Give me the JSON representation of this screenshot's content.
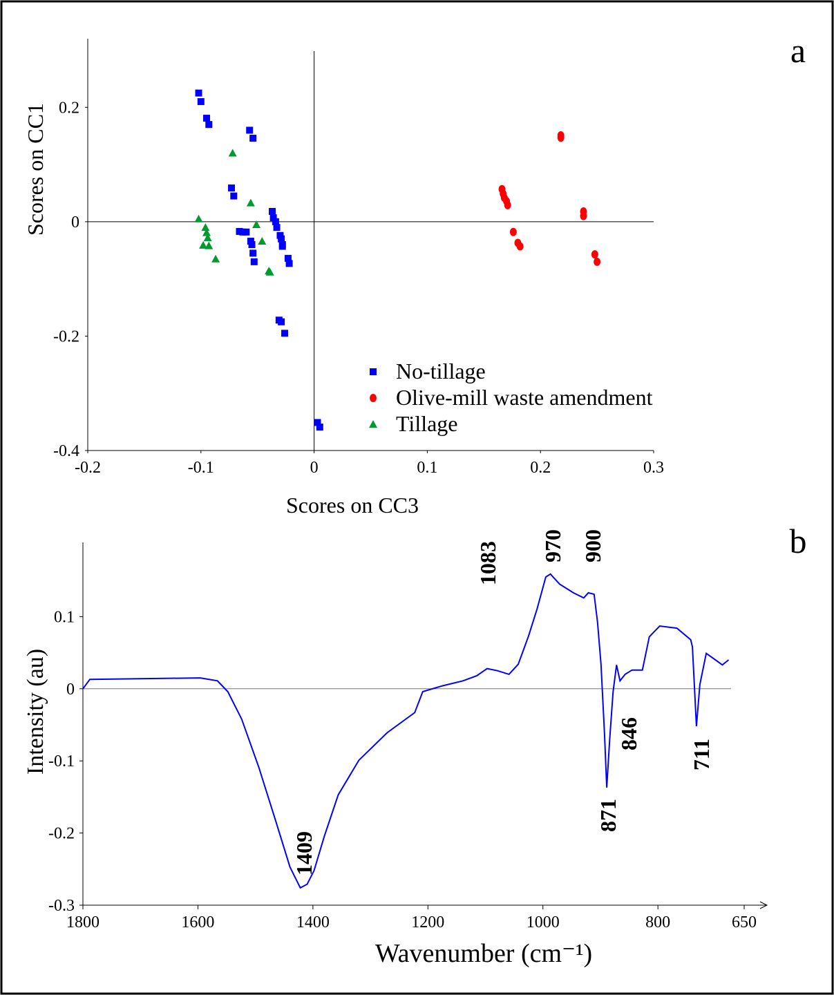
{
  "chart_data": [
    {
      "type": "scatter",
      "panel_label": "a",
      "x_label": "Scores on CC3",
      "y_label": "Scores on CC1",
      "xlim": [
        -0.2,
        0.3
      ],
      "ylim": [
        -0.4,
        0.32
      ],
      "xticks": [
        -0.2,
        -0.1,
        0,
        0.1,
        0.2,
        0.3
      ],
      "yticks": [
        -0.4,
        -0.2,
        0,
        0.2
      ],
      "series": [
        {
          "name": "No-tillage",
          "color": "#0000ff",
          "marker": "square",
          "x": [
            -0.102,
            -0.1,
            -0.095,
            -0.093,
            -0.057,
            -0.054,
            -0.073,
            -0.071,
            -0.037,
            -0.036,
            -0.034,
            -0.033,
            -0.066,
            -0.063,
            -0.06,
            -0.056,
            -0.055,
            -0.054,
            -0.053,
            -0.03,
            -0.029,
            -0.028,
            -0.028,
            -0.023,
            -0.022,
            -0.031,
            -0.029,
            -0.026,
            0.003,
            0.005
          ],
          "values": [
            0.225,
            0.21,
            0.181,
            0.17,
            0.16,
            0.146,
            0.059,
            0.045,
            0.018,
            0.007,
            0,
            -0.01,
            -0.017,
            -0.018,
            -0.018,
            -0.034,
            -0.04,
            -0.055,
            -0.07,
            -0.024,
            -0.03,
            -0.04,
            -0.043,
            -0.064,
            -0.073,
            -0.172,
            -0.175,
            -0.195,
            -0.351,
            -0.359
          ]
        },
        {
          "name": "Olive-mill waste amendment",
          "color": "#ff0000",
          "marker": "circle",
          "x": [
            0.166,
            0.167,
            0.168,
            0.17,
            0.171,
            0.176,
            0.18,
            0.182,
            0.218,
            0.218,
            0.238,
            0.238,
            0.248,
            0.25
          ],
          "values": [
            0.057,
            0.049,
            0.042,
            0.036,
            0.029,
            -0.018,
            -0.037,
            -0.043,
            0.151,
            0.147,
            0.018,
            0.01,
            -0.057,
            -0.07
          ]
        },
        {
          "name": "Tillage",
          "color": "#009a2e",
          "marker": "triangle",
          "x": [
            -0.072,
            -0.056,
            -0.051,
            -0.102,
            -0.096,
            -0.095,
            -0.098,
            -0.094,
            -0.093,
            -0.087,
            -0.046,
            -0.04,
            -0.039
          ],
          "values": [
            0.12,
            0.033,
            -0.005,
            0.005,
            -0.01,
            -0.019,
            -0.041,
            -0.028,
            -0.042,
            -0.065,
            -0.034,
            -0.086,
            -0.088
          ]
        }
      ]
    },
    {
      "type": "line",
      "panel_label": "b",
      "x_label": "Wavenumber (cm⁻¹)",
      "y_label": "Intensity (au)",
      "xlim": [
        1800,
        650
      ],
      "ylim": [
        -0.3,
        0.2
      ],
      "xticks": [
        1800,
        1600,
        1400,
        1200,
        1000,
        800,
        650
      ],
      "yticks": [
        -0.3,
        -0.2,
        -0.1,
        0,
        0.1
      ],
      "series": [
        {
          "color": "#0000ff",
          "x": [
            1800,
            1788,
            1596,
            1566,
            1548,
            1524,
            1494,
            1464,
            1440,
            1422,
            1410,
            1398,
            1380,
            1356,
            1320,
            1271,
            1223,
            1209,
            1175,
            1139,
            1115,
            1097,
            1079,
            1059,
            1043,
            1025,
            1010,
            995,
            987,
            971,
            947,
            929,
            921,
            911,
            905,
            899,
            893,
            889,
            884,
            878,
            872,
            866,
            857,
            845,
            827,
            815,
            797,
            767,
            743,
            740,
            733,
            727,
            716,
            700,
            688,
            677
          ],
          "values": [
            0,
            0.013,
            0.015,
            0.011,
            -0.004,
            -0.042,
            -0.109,
            -0.185,
            -0.247,
            -0.276,
            -0.271,
            -0.252,
            -0.204,
            -0.147,
            -0.099,
            -0.061,
            -0.033,
            -0.004,
            0.004,
            0.011,
            0.018,
            0.028,
            0.025,
            0.02,
            0.034,
            0.073,
            0.111,
            0.155,
            0.159,
            0.145,
            0.133,
            0.126,
            0.133,
            0.131,
            0.092,
            0.034,
            -0.061,
            -0.137,
            -0.071,
            -0.004,
            0.033,
            0.011,
            0.02,
            0.026,
            0.026,
            0.072,
            0.087,
            0.084,
            0.068,
            0.058,
            -0.052,
            0.006,
            0.049,
            0.04,
            0.033,
            0.04
          ]
        }
      ],
      "annotations": [
        "1409",
        "1083",
        "970",
        "900",
        "871",
        "846",
        "711"
      ]
    }
  ]
}
